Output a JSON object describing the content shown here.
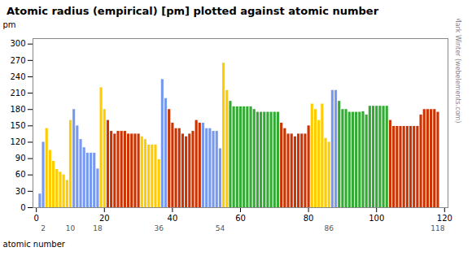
{
  "chart_data": {
    "type": "bar",
    "title": "Atomic radius (empirical) [pm] plotted against atomic number",
    "xlabel": "atomic number",
    "ylabel": "pm",
    "x": [
      1,
      2,
      3,
      4,
      5,
      6,
      7,
      8,
      9,
      10,
      11,
      12,
      13,
      14,
      15,
      16,
      17,
      18,
      19,
      20,
      21,
      22,
      23,
      24,
      25,
      26,
      27,
      28,
      29,
      30,
      31,
      32,
      33,
      34,
      35,
      36,
      37,
      38,
      39,
      40,
      41,
      42,
      43,
      44,
      45,
      46,
      47,
      48,
      49,
      50,
      51,
      52,
      53,
      54,
      55,
      56,
      57,
      58,
      59,
      60,
      61,
      62,
      63,
      64,
      65,
      66,
      67,
      68,
      69,
      70,
      71,
      72,
      73,
      74,
      75,
      76,
      77,
      78,
      79,
      80,
      81,
      82,
      83,
      84,
      85,
      86,
      87,
      88,
      89,
      90,
      91,
      92,
      93,
      94,
      95,
      96,
      97,
      98,
      99,
      100,
      101,
      102,
      103,
      104,
      105,
      106,
      107,
      108,
      109,
      110,
      111,
      112,
      113,
      114,
      115,
      116,
      117,
      118
    ],
    "values": [
      25,
      120,
      145,
      105,
      85,
      70,
      65,
      60,
      50,
      160,
      180,
      150,
      125,
      110,
      100,
      100,
      100,
      71,
      220,
      180,
      160,
      140,
      135,
      140,
      140,
      140,
      135,
      135,
      135,
      135,
      130,
      125,
      115,
      115,
      115,
      88,
      235,
      200,
      180,
      155,
      145,
      145,
      135,
      130,
      135,
      140,
      160,
      155,
      155,
      145,
      145,
      140,
      140,
      108,
      265,
      215,
      195,
      185,
      185,
      185,
      185,
      185,
      185,
      180,
      175,
      175,
      175,
      175,
      175,
      175,
      175,
      155,
      145,
      135,
      135,
      130,
      135,
      135,
      135,
      150,
      190,
      180,
      160,
      190,
      127,
      120,
      215,
      215,
      195,
      180,
      180,
      175,
      175,
      175,
      175,
      176,
      170,
      186,
      186,
      186,
      186,
      186,
      186,
      160,
      149,
      149,
      149,
      149,
      149,
      149,
      149,
      149,
      170,
      180,
      180,
      180,
      180,
      175
    ],
    "colors": [
      "#7799ee",
      "#7799ee",
      "#ffcc00",
      "#ffcc00",
      "#ffcc00",
      "#ffcc00",
      "#ffcc00",
      "#ffcc00",
      "#ffcc00",
      "#ffcc00",
      "#7799ee",
      "#7799ee",
      "#7799ee",
      "#7799ee",
      "#7799ee",
      "#7799ee",
      "#7799ee",
      "#7799ee",
      "#ffcc00",
      "#ffcc00",
      "#cc3300",
      "#cc3300",
      "#cc3300",
      "#cc3300",
      "#cc3300",
      "#cc3300",
      "#cc3300",
      "#cc3300",
      "#cc3300",
      "#cc3300",
      "#ffcc00",
      "#ffcc00",
      "#ffcc00",
      "#ffcc00",
      "#ffcc00",
      "#ffcc00",
      "#7799ee",
      "#7799ee",
      "#cc3300",
      "#cc3300",
      "#cc3300",
      "#cc3300",
      "#cc3300",
      "#cc3300",
      "#cc3300",
      "#cc3300",
      "#cc3300",
      "#cc3300",
      "#7799ee",
      "#7799ee",
      "#7799ee",
      "#7799ee",
      "#7799ee",
      "#7799ee",
      "#ffcc00",
      "#ffcc00",
      "#33aa33",
      "#33aa33",
      "#33aa33",
      "#33aa33",
      "#33aa33",
      "#33aa33",
      "#33aa33",
      "#33aa33",
      "#33aa33",
      "#33aa33",
      "#33aa33",
      "#33aa33",
      "#33aa33",
      "#33aa33",
      "#33aa33",
      "#cc3300",
      "#cc3300",
      "#cc3300",
      "#cc3300",
      "#cc3300",
      "#cc3300",
      "#cc3300",
      "#cc3300",
      "#cc3300",
      "#ffcc00",
      "#ffcc00",
      "#ffcc00",
      "#ffcc00",
      "#ffcc00",
      "#ffcc00",
      "#7799ee",
      "#7799ee",
      "#33aa33",
      "#33aa33",
      "#33aa33",
      "#33aa33",
      "#33aa33",
      "#33aa33",
      "#33aa33",
      "#33aa33",
      "#33aa33",
      "#33aa33",
      "#33aa33",
      "#33aa33",
      "#33aa33",
      "#33aa33",
      "#33aa33",
      "#cc3300",
      "#cc3300",
      "#cc3300",
      "#cc3300",
      "#cc3300",
      "#cc3300",
      "#cc3300",
      "#cc3300",
      "#cc3300",
      "#cc3300",
      "#cc3300",
      "#cc3300",
      "#cc3300",
      "#cc3300",
      "#cc3300"
    ],
    "xlim": [
      -1,
      121
    ],
    "ylim": [
      0,
      310
    ],
    "xticks": [
      0,
      20,
      40,
      60,
      80,
      100,
      120
    ],
    "yticks": [
      0,
      30,
      60,
      90,
      120,
      150,
      180,
      210,
      240,
      270,
      300
    ],
    "annotations": [
      {
        "x": 2,
        "text": "2"
      },
      {
        "x": 10,
        "text": "10"
      },
      {
        "x": 18,
        "text": "18"
      },
      {
        "x": 36,
        "text": "36"
      },
      {
        "x": 54,
        "text": "54"
      },
      {
        "x": 86,
        "text": "86"
      },
      {
        "x": 118,
        "text": "118"
      },
      {
        "text": "© Mark Winter (webelements.com)"
      }
    ],
    "grid": false
  }
}
